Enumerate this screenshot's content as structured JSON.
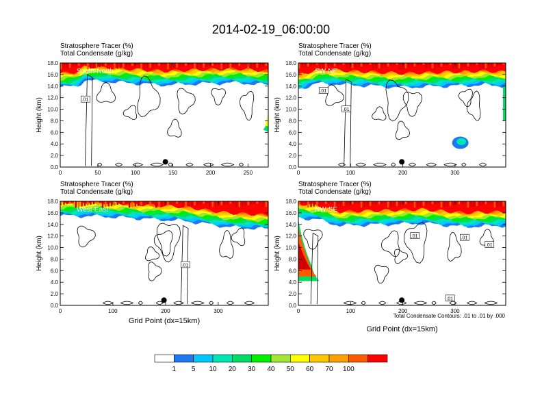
{
  "figure": {
    "title": "2014-02-19_06:00:00",
    "contour_note": "Total Condensate Contours: .01 to .01 by .000"
  },
  "chart_data": {
    "type": "heatmap",
    "title": "2014-02-19_06:00:00",
    "colors": {
      "white": "#ffffff",
      "c1": "#1e78f0",
      "c5": "#00c8ff",
      "c10": "#00e6b4",
      "c20": "#00dc64",
      "c30": "#00f000",
      "c40": "#a0e632",
      "c50": "#ffff00",
      "c60": "#ffc800",
      "c70": "#ffa000",
      "c80": "#ff5a00",
      "c100": "#ff0000",
      "dark_red": "#d20000"
    },
    "colorbar": {
      "labels": [
        "1",
        "5",
        "10",
        "20",
        "30",
        "40",
        "50",
        "60",
        "70",
        "100"
      ],
      "colors": [
        "#ffffff",
        "#1e78f0",
        "#00c8ff",
        "#00e6b4",
        "#00dc64",
        "#00f000",
        "#a0e632",
        "#ffff00",
        "#ffc800",
        "#ffa000",
        "#ff5a00",
        "#ff0000"
      ]
    },
    "panels": [
      {
        "id": "south-north",
        "line1": "Stratosphere Tracer   (%)",
        "line2": "Total Condensate   (g/kg)",
        "region": "South-North",
        "ylabel": "Height (km)",
        "xlabel": "",
        "xlim": [
          0,
          277
        ],
        "ylim": [
          0,
          18
        ],
        "xticks": [
          0,
          50,
          100,
          150,
          200,
          250
        ],
        "yticks": [
          "0.0",
          "2.0",
          "4.0",
          "6.0",
          "8.0",
          "10.0",
          "12.0",
          "14.0",
          "16.0",
          "18.0"
        ],
        "marker_x": 140,
        "contour_labels": [
          ".01"
        ]
      },
      {
        "id": "sw-ne",
        "line1": "Stratosphere Tracer   (%)",
        "line2": "Total Condensate   (g/kg)",
        "region": "SW-NE",
        "ylabel": "Height (km)",
        "xlabel": "",
        "xlim": [
          0,
          397
        ],
        "ylim": [
          0,
          18
        ],
        "xticks": [
          0,
          100,
          200,
          300
        ],
        "yticks": [
          "0.0",
          "2.0",
          "4.0",
          "6.0",
          "8.0",
          "10.0",
          "12.0",
          "14.0",
          "16.0",
          "18.0"
        ],
        "marker_x": 198,
        "contour_labels": [
          ".01",
          ".01"
        ]
      },
      {
        "id": "west-east",
        "line1": "Stratosphere Tracer   (%)",
        "line2": "Total Condensate   (g/kg)",
        "region": "West-East",
        "ylabel": "Height (km)",
        "xlabel": "Grid Point (dx=15km)",
        "xlim": [
          0,
          395
        ],
        "ylim": [
          0,
          18
        ],
        "xticks": [
          0,
          100,
          200,
          300
        ],
        "yticks": [
          "0.0",
          "2.0",
          "4.0",
          "6.0",
          "8.0",
          "10.0",
          "12.0",
          "14.0",
          "16.0",
          "18.0"
        ],
        "marker_x": 197,
        "contour_labels": [
          ".01"
        ]
      },
      {
        "id": "nw-se",
        "line1": "Stratosphere Tracer   (%)",
        "line2": "Total Condensate   (g/kg)",
        "region": "NW-SE",
        "ylabel": "Height (km)",
        "xlabel": "Grid Point (dx=15km)",
        "xlim": [
          0,
          397
        ],
        "ylim": [
          0,
          18
        ],
        "xticks": [
          0,
          100,
          200,
          300
        ],
        "yticks": [
          "0.0",
          "2.0",
          "4.0",
          "6.0",
          "8.0",
          "10.0",
          "12.0",
          "14.0",
          "16.0",
          "18.0"
        ],
        "marker_x": 198,
        "contour_labels": [
          ".01",
          ".01",
          ".01",
          ".01"
        ]
      }
    ]
  }
}
